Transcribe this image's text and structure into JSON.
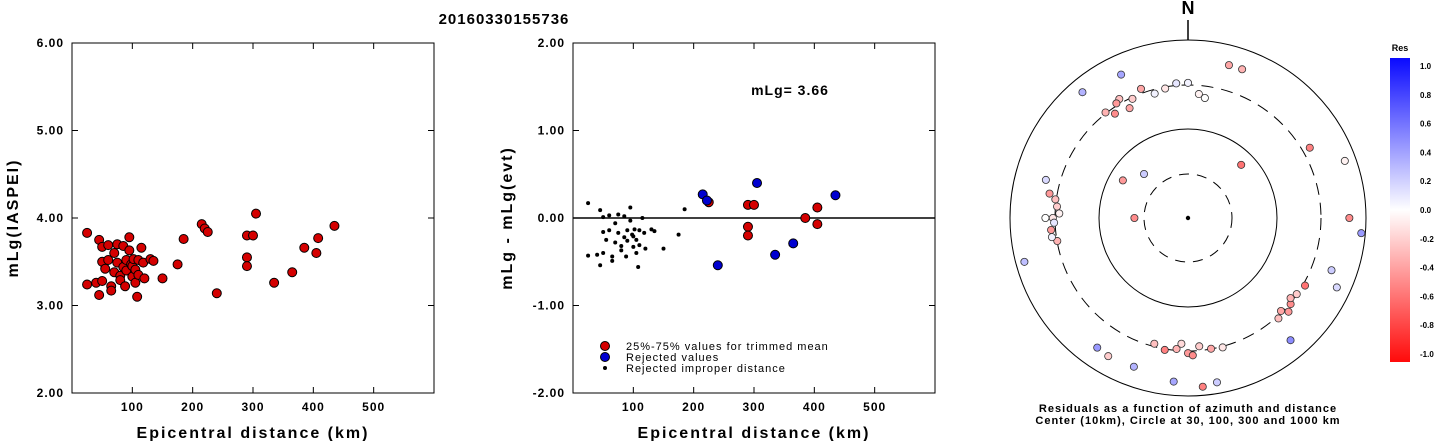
{
  "title": "20160330155736",
  "colors": {
    "red": "#d40000",
    "blue": "#0000d0",
    "black": "#000000"
  },
  "chart_data": [
    {
      "type": "scatter",
      "xlabel": "Epicentral distance (km)",
      "ylabel": "mLg(IASPEI)",
      "xlim": [
        0,
        600
      ],
      "ylim": [
        2.0,
        6.0
      ],
      "x_ticks": [
        "100",
        "200",
        "300",
        "400",
        "500"
      ],
      "y_ticks": [
        "2.00",
        "3.00",
        "4.00",
        "5.00",
        "6.00"
      ],
      "series": [
        {
          "color": "red",
          "points": [
            [
              25,
              3.83
            ],
            [
              25,
              3.24
            ],
            [
              40,
              3.26
            ],
            [
              45,
              3.12
            ],
            [
              45,
              3.75
            ],
            [
              50,
              3.28
            ],
            [
              50,
              3.5
            ],
            [
              50,
              3.67
            ],
            [
              55,
              3.42
            ],
            [
              60,
              3.69
            ],
            [
              60,
              3.52
            ],
            [
              65,
              3.22
            ],
            [
              65,
              3.17
            ],
            [
              70,
              3.38
            ],
            [
              70,
              3.6
            ],
            [
              75,
              3.49
            ],
            [
              75,
              3.7
            ],
            [
              80,
              3.34
            ],
            [
              80,
              3.29
            ],
            [
              85,
              3.44
            ],
            [
              85,
              3.68
            ],
            [
              88,
              3.22
            ],
            [
              90,
              3.52
            ],
            [
              90,
              3.4
            ],
            [
              95,
              3.63
            ],
            [
              95,
              3.78
            ],
            [
              98,
              3.47
            ],
            [
              100,
              3.33
            ],
            [
              100,
              3.45
            ],
            [
              102,
              3.53
            ],
            [
              105,
              3.26
            ],
            [
              105,
              3.41
            ],
            [
              108,
              3.1
            ],
            [
              110,
              3.52
            ],
            [
              110,
              3.35
            ],
            [
              115,
              3.66
            ],
            [
              118,
              3.49
            ],
            [
              120,
              3.31
            ],
            [
              130,
              3.53
            ],
            [
              135,
              3.51
            ],
            [
              150,
              3.31
            ],
            [
              175,
              3.47
            ],
            [
              185,
              3.76
            ],
            [
              215,
              3.93
            ],
            [
              220,
              3.88
            ],
            [
              225,
              3.84
            ],
            [
              240,
              3.14
            ],
            [
              290,
              3.8
            ],
            [
              290,
              3.55
            ],
            [
              290,
              3.45
            ],
            [
              300,
              3.8
            ],
            [
              305,
              4.05
            ],
            [
              335,
              3.26
            ],
            [
              365,
              3.38
            ],
            [
              385,
              3.66
            ],
            [
              405,
              3.6
            ],
            [
              408,
              3.77
            ],
            [
              435,
              3.91
            ]
          ]
        }
      ]
    },
    {
      "type": "scatter",
      "xlabel": "Epicentral distance (km)",
      "ylabel": "mLg - mLg(evt)",
      "annotation": "mLg= 3.66",
      "xlim": [
        0,
        600
      ],
      "ylim": [
        -2.0,
        2.0
      ],
      "x_ticks": [
        "100",
        "200",
        "300",
        "400",
        "500"
      ],
      "y_ticks": [
        "-2.00",
        "-1.00",
        "0.00",
        "1.00",
        "2.00"
      ],
      "legend": [
        "25%-75% values for trimmed mean",
        "Rejected values",
        "Rejected improper distance"
      ],
      "series": [
        {
          "name": "25%-75% values for trimmed mean",
          "color": "red",
          "points": [
            [
              225,
              0.18
            ],
            [
              290,
              0.15
            ],
            [
              300,
              0.15
            ],
            [
              290,
              -0.1
            ],
            [
              290,
              -0.2
            ],
            [
              385,
              0.0
            ],
            [
              405,
              0.12
            ],
            [
              405,
              -0.07
            ]
          ]
        },
        {
          "name": "Rejected values",
          "color": "blue",
          "points": [
            [
              215,
              0.27
            ],
            [
              222,
              0.2
            ],
            [
              240,
              -0.54
            ],
            [
              305,
              0.4
            ],
            [
              335,
              -0.42
            ],
            [
              365,
              -0.29
            ],
            [
              435,
              0.26
            ]
          ]
        },
        {
          "name": "Rejected improper distance",
          "color": "black",
          "points": [
            [
              25,
              0.17
            ],
            [
              25,
              -0.43
            ],
            [
              40,
              -0.42
            ],
            [
              45,
              0.09
            ],
            [
              45,
              -0.54
            ],
            [
              50,
              -0.4
            ],
            [
              50,
              -0.16
            ],
            [
              50,
              0.01
            ],
            [
              55,
              -0.25
            ],
            [
              60,
              0.03
            ],
            [
              60,
              -0.14
            ],
            [
              65,
              -0.44
            ],
            [
              65,
              -0.49
            ],
            [
              70,
              -0.28
            ],
            [
              70,
              -0.06
            ],
            [
              75,
              -0.17
            ],
            [
              75,
              0.04
            ],
            [
              80,
              -0.32
            ],
            [
              80,
              -0.37
            ],
            [
              85,
              -0.22
            ],
            [
              85,
              0.02
            ],
            [
              88,
              -0.44
            ],
            [
              90,
              -0.14
            ],
            [
              90,
              -0.26
            ],
            [
              95,
              -0.03
            ],
            [
              95,
              0.12
            ],
            [
              98,
              -0.19
            ],
            [
              100,
              -0.33
            ],
            [
              100,
              -0.21
            ],
            [
              102,
              -0.13
            ],
            [
              105,
              -0.4
            ],
            [
              105,
              -0.25
            ],
            [
              108,
              -0.56
            ],
            [
              110,
              -0.14
            ],
            [
              110,
              -0.31
            ],
            [
              115,
              0.0
            ],
            [
              118,
              -0.17
            ],
            [
              120,
              -0.35
            ],
            [
              130,
              -0.13
            ],
            [
              135,
              -0.15
            ],
            [
              150,
              -0.35
            ],
            [
              175,
              -0.19
            ],
            [
              185,
              0.1
            ]
          ]
        }
      ]
    },
    {
      "type": "polar",
      "north_label": "N",
      "caption_line1": "Residuals as a function of azimuth and distance",
      "caption_line2": "Center (10km), Circle at 30, 100, 300 and 1000 km",
      "colorbar_title": "Res",
      "colorbar_ticks": [
        "1.0",
        "0.8",
        "0.6",
        "0.4",
        "0.2",
        "0.0",
        "-0.2",
        "-0.4",
        "-0.6",
        "-0.8",
        "-1.0"
      ],
      "points": [
        {
          "az": 5,
          "dist": 250,
          "res": -0.05
        },
        {
          "az": 15,
          "dist": 600,
          "res": -0.35
        },
        {
          "az": 20,
          "dist": 600,
          "res": -0.3
        },
        {
          "az": 330,
          "dist": 350,
          "res": -0.25
        },
        {
          "az": 335,
          "dist": 300,
          "res": -0.2
        },
        {
          "az": 328,
          "dist": 330,
          "res": -0.4
        },
        {
          "az": 340,
          "dist": 350,
          "res": -0.35
        },
        {
          "az": 345,
          "dist": 280,
          "res": 0.05
        },
        {
          "az": 350,
          "dist": 300,
          "res": -0.1
        },
        {
          "az": 355,
          "dist": 330,
          "res": 0.1
        },
        {
          "az": 0,
          "dist": 330,
          "res": 0.05
        },
        {
          "az": 322,
          "dist": 320,
          "res": -0.3
        },
        {
          "az": 325,
          "dist": 270,
          "res": -0.45
        },
        {
          "az": 332,
          "dist": 250,
          "res": -0.35
        },
        {
          "az": 8,
          "dist": 230,
          "res": 0.0
        },
        {
          "az": 320,
          "dist": 700,
          "res": 0.3
        },
        {
          "az": 335,
          "dist": 600,
          "res": 0.35
        },
        {
          "az": 60,
          "dist": 380,
          "res": -0.5
        },
        {
          "az": 70,
          "dist": 750,
          "res": -0.05
        },
        {
          "az": 90,
          "dist": 650,
          "res": -0.45
        },
        {
          "az": 95,
          "dist": 900,
          "res": 0.4
        },
        {
          "az": 45,
          "dist": 70,
          "res": -0.55
        },
        {
          "az": 300,
          "dist": 70,
          "res": -0.4
        },
        {
          "az": 315,
          "dist": 50,
          "res": 0.2
        },
        {
          "az": 265,
          "dist": 350,
          "res": -0.4
        },
        {
          "az": 270,
          "dist": 330,
          "res": -0.1
        },
        {
          "az": 275,
          "dist": 300,
          "res": -0.2
        },
        {
          "az": 268,
          "dist": 320,
          "res": 0.1
        },
        {
          "az": 272,
          "dist": 280,
          "res": -0.05
        },
        {
          "az": 260,
          "dist": 310,
          "res": -0.3
        },
        {
          "az": 262,
          "dist": 350,
          "res": 0.05
        },
        {
          "az": 278,
          "dist": 320,
          "res": -0.25
        },
        {
          "az": 280,
          "dist": 380,
          "res": -0.4
        },
        {
          "az": 270,
          "dist": 400,
          "res": 0.0
        },
        {
          "az": 285,
          "dist": 450,
          "res": 0.15
        },
        {
          "az": 255,
          "dist": 800,
          "res": 0.25
        },
        {
          "az": 270,
          "dist": 40,
          "res": -0.45
        },
        {
          "az": 185,
          "dist": 300,
          "res": -0.3
        },
        {
          "az": 175,
          "dist": 280,
          "res": -0.2
        },
        {
          "az": 180,
          "dist": 330,
          "res": -0.4
        },
        {
          "az": 190,
          "dist": 320,
          "res": -0.5
        },
        {
          "az": 170,
          "dist": 310,
          "res": -0.35
        },
        {
          "az": 183,
          "dist": 260,
          "res": -0.15
        },
        {
          "az": 178,
          "dist": 350,
          "res": -0.45
        },
        {
          "az": 195,
          "dist": 290,
          "res": -0.25
        },
        {
          "az": 165,
          "dist": 320,
          "res": -0.1
        },
        {
          "az": 200,
          "dist": 600,
          "res": 0.3
        },
        {
          "az": 215,
          "dist": 600,
          "res": 0.4
        },
        {
          "az": 210,
          "dist": 620,
          "res": -0.2
        },
        {
          "az": 175,
          "dist": 800,
          "res": -0.5
        },
        {
          "az": 170,
          "dist": 750,
          "res": 0.2
        },
        {
          "az": 185,
          "dist": 700,
          "res": 0.35
        },
        {
          "az": 135,
          "dist": 300,
          "res": -0.35
        },
        {
          "az": 130,
          "dist": 320,
          "res": -0.45
        },
        {
          "az": 128,
          "dist": 290,
          "res": -0.3
        },
        {
          "az": 125,
          "dist": 310,
          "res": -0.2
        },
        {
          "az": 133,
          "dist": 350,
          "res": -0.4
        },
        {
          "az": 120,
          "dist": 330,
          "res": -0.55
        },
        {
          "az": 138,
          "dist": 330,
          "res": -0.25
        },
        {
          "az": 110,
          "dist": 520,
          "res": 0.2
        },
        {
          "az": 115,
          "dist": 700,
          "res": 0.15
        },
        {
          "az": 140,
          "dist": 620,
          "res": 0.45
        }
      ]
    }
  ]
}
